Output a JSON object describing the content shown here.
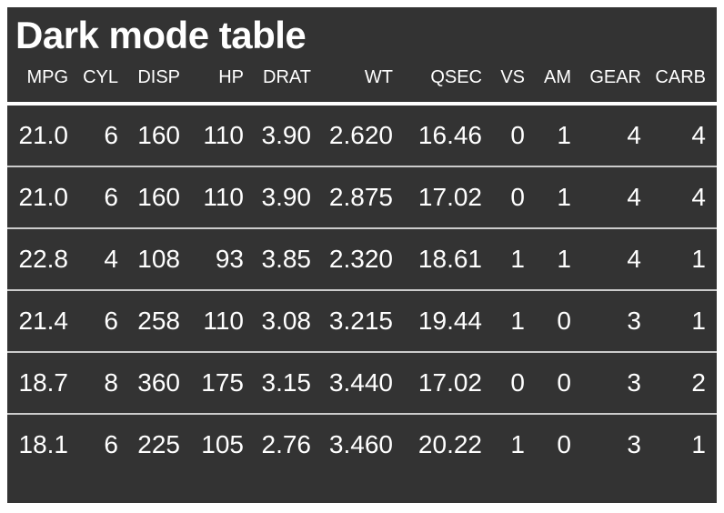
{
  "chart_data": {
    "type": "table",
    "title": "Dark mode table",
    "columns": [
      "MPG",
      "CYL",
      "DISP",
      "HP",
      "DRAT",
      "WT",
      "QSEC",
      "VS",
      "AM",
      "GEAR",
      "CARB"
    ],
    "rows": [
      [
        "21.0",
        "6",
        "160",
        "110",
        "3.90",
        "2.620",
        "16.46",
        "0",
        "1",
        "4",
        "4"
      ],
      [
        "21.0",
        "6",
        "160",
        "110",
        "3.90",
        "2.875",
        "17.02",
        "0",
        "1",
        "4",
        "4"
      ],
      [
        "22.8",
        "4",
        "108",
        "93",
        "3.85",
        "2.320",
        "18.61",
        "1",
        "1",
        "4",
        "1"
      ],
      [
        "21.4",
        "6",
        "258",
        "110",
        "3.08",
        "3.215",
        "19.44",
        "1",
        "0",
        "3",
        "1"
      ],
      [
        "18.7",
        "8",
        "360",
        "175",
        "3.15",
        "3.440",
        "17.02",
        "0",
        "0",
        "3",
        "2"
      ],
      [
        "18.1",
        "6",
        "225",
        "105",
        "2.76",
        "3.460",
        "20.22",
        "1",
        "0",
        "3",
        "1"
      ]
    ],
    "layout": {
      "alignment": "right",
      "header_divider_thick": true,
      "row_dividers": true
    },
    "colors": {
      "table_background": "#333333",
      "text": "#FFFFFF",
      "header_divider": "#FFFFFF",
      "row_divider": "#CCCCCC",
      "page_background": "#FFFFFF"
    }
  }
}
